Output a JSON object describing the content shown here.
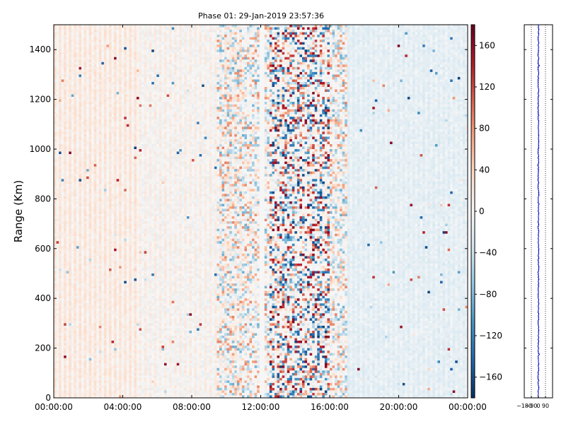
{
  "chart_data": [
    {
      "type": "heatmap",
      "title": "Phase 01: 29-Jan-2019 23:57:36",
      "ylabel": "Range (Km)",
      "xlabel": "",
      "x_tick_labels": [
        "00:00:00",
        "04:00:00",
        "08:00:00",
        "12:00:00",
        "16:00:00",
        "20:00:00",
        "00:00:00"
      ],
      "xlim_hours": [
        0,
        24
      ],
      "y_ticks": [
        0,
        200,
        400,
        600,
        800,
        1000,
        1200,
        1400
      ],
      "ylim": [
        0,
        1500
      ],
      "colormap": "RdBu_r",
      "colorbar_ticks": [
        -160,
        -120,
        -80,
        -40,
        0,
        40,
        80,
        120,
        160
      ],
      "colorbar_tick_labels": [
        "−160",
        "−120",
        "−80",
        "−40",
        "0",
        "40",
        "80",
        "120",
        "160"
      ],
      "clim": [
        -180,
        180
      ],
      "colors": {
        "low": "#053061",
        "mid": "#f7f7f7",
        "high": "#67001f"
      },
      "noisy_band_hours": [
        9.5,
        17.0
      ],
      "most_noisy_band_hours": [
        12.5,
        16.0
      ],
      "gap_column_hour": 12.1
    },
    {
      "type": "line",
      "x_tick_labels": [
        "−180",
        "−90",
        "0",
        "90"
      ],
      "xlim": [
        -180,
        180
      ],
      "ylim": [
        0,
        1500
      ],
      "grid": "vertical dotted",
      "series_color": "#0000cc",
      "mean_value": 0
    }
  ]
}
